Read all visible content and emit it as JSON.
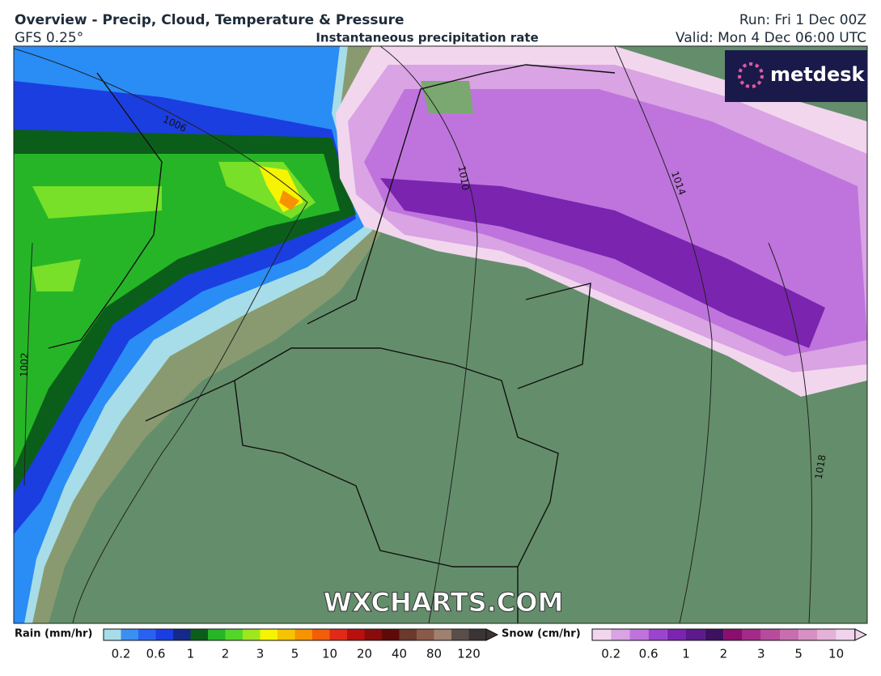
{
  "header": {
    "title": "Overview - Precip, Cloud, Temperature & Pressure",
    "model": "GFS 0.25°",
    "subtitle": "Instantaneous precipitation rate",
    "run": "Run: Fri 1 Dec 00Z",
    "valid": "Valid: Mon 4 Dec 06:00 UTC"
  },
  "logo": "metdesk",
  "watermark": "WXCHARTS.COM",
  "isobars": [
    "1006",
    "1010",
    "1014",
    "1018",
    "1002"
  ],
  "legend": {
    "rain": {
      "label": "Rain (mm/hr)",
      "colors": [
        "#a7dde8",
        "#3b8ff0",
        "#2a62f0",
        "#1b3ee0",
        "#142a8a",
        "#0b5e1a",
        "#27b528",
        "#52d728",
        "#a0e61e",
        "#f6f400",
        "#f5c400",
        "#f59400",
        "#f25d0a",
        "#e02a16",
        "#b8100f",
        "#8a0b0b",
        "#5e0a08",
        "#6a3a2c",
        "#8a5a48",
        "#a08070",
        "#5a4e4a",
        "#3b3434"
      ],
      "ticks": [
        "0.2",
        "0.6",
        "1",
        "2",
        "3",
        "5",
        "10",
        "20",
        "40",
        "80",
        "120"
      ]
    },
    "snow": {
      "label": "Snow (cm/hr)",
      "colors": [
        "#f2d6ee",
        "#d9a3e4",
        "#bf74dd",
        "#9b44cf",
        "#7b24b0",
        "#5c1a8c",
        "#3e1060",
        "#8a0e6e",
        "#a42a88",
        "#b84c9c",
        "#c86eb0",
        "#d690c4",
        "#e4b2d8",
        "#f0d4ec"
      ],
      "ticks": [
        "0.2",
        "0.6",
        "1",
        "2",
        "3",
        "5",
        "10"
      ]
    }
  }
}
